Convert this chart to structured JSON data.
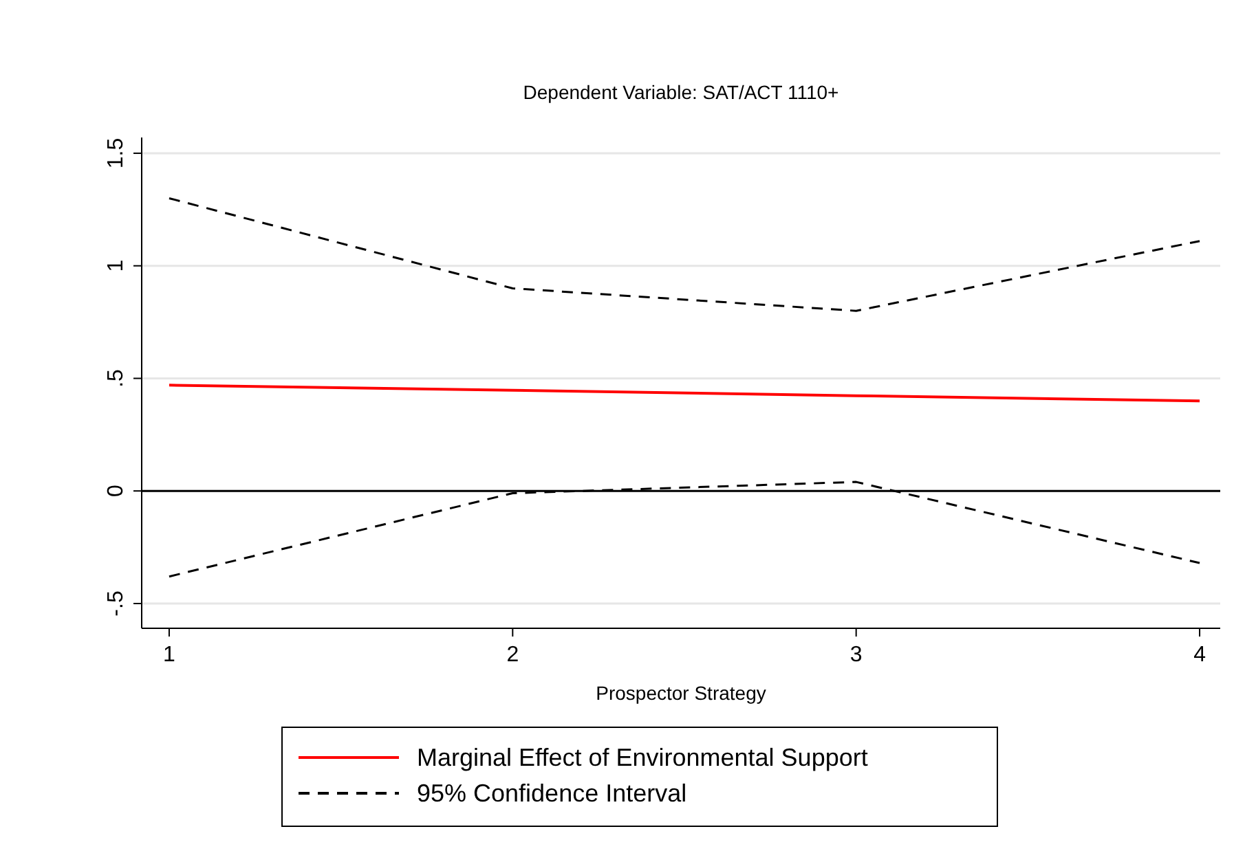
{
  "chart_data": {
    "type": "line",
    "title": "Dependent Variable: SAT/ACT 1110+",
    "xlabel": "Prospector Strategy",
    "x": [
      1,
      2,
      3,
      4
    ],
    "xlim": [
      0.92,
      4.06
    ],
    "xticks": [
      1,
      2,
      3,
      4
    ],
    "ylim": [
      -0.61,
      1.57
    ],
    "yticks": [
      {
        "value": -0.5,
        "label": "-.5"
      },
      0,
      {
        "value": 0.5,
        "label": ".5"
      },
      1,
      1.5
    ],
    "grid": "y",
    "legend": "bottom",
    "ref_lines": [
      {
        "axis": "y",
        "value": 0,
        "label": null,
        "color": "#000000"
      }
    ],
    "series": [
      {
        "name": "Marginal Effect of Environmental Support",
        "color": "#ff0000",
        "line_style": "solid",
        "values": [
          0.47,
          0.447,
          0.423,
          0.4
        ]
      },
      {
        "name": "95% Confidence Interval",
        "color": "#000000",
        "line_style": "dashed",
        "values": [
          1.3,
          0.9,
          0.8,
          1.11
        ]
      },
      {
        "color": "#000000",
        "line_style": "dashed",
        "values": [
          -0.38,
          -0.01,
          0.04,
          -0.32
        ]
      }
    ]
  }
}
